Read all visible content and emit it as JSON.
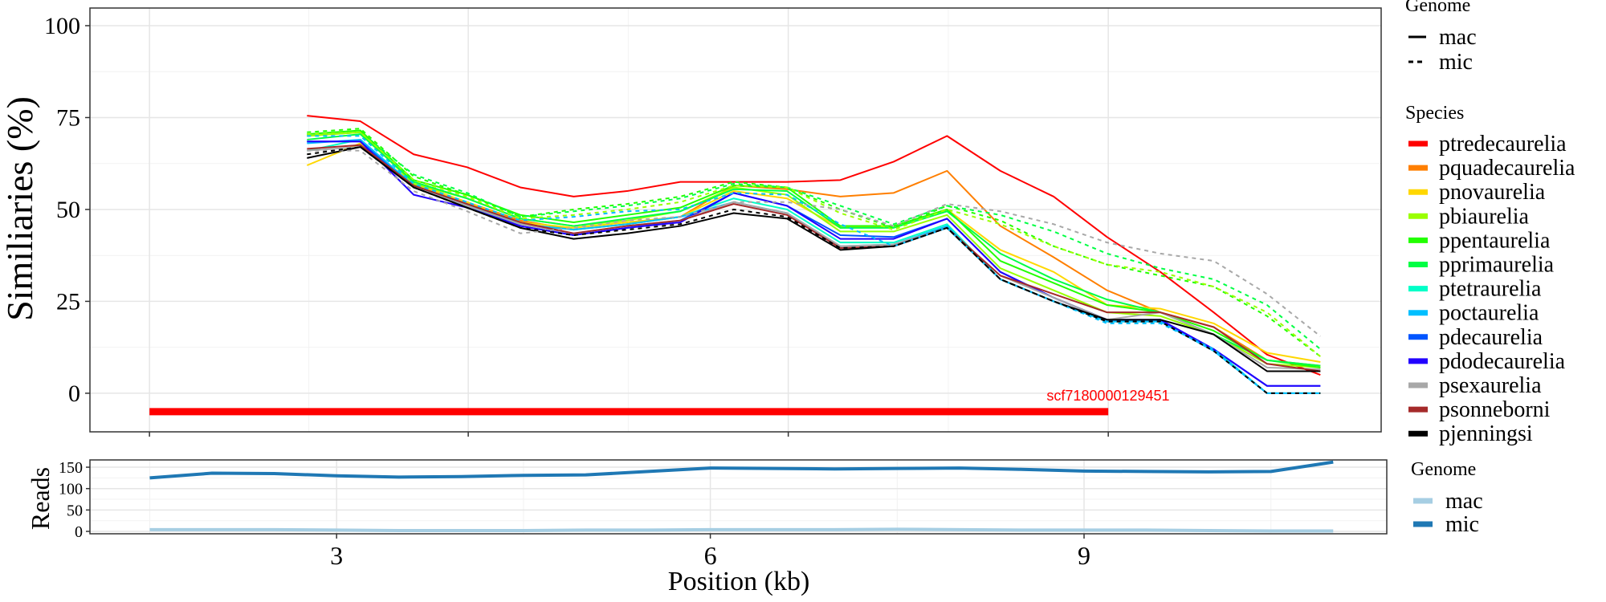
{
  "chart_data": [
    {
      "type": "line",
      "title": "",
      "xlabel": "",
      "ylabel": "Similiaries (%)",
      "xlim": [
        1.02,
        11.43
      ],
      "ylim": [
        -10.5,
        104.8
      ],
      "yticks": [
        0,
        25,
        50,
        75,
        100
      ],
      "xticks_unlabeled": [
        1.5,
        4.07,
        6.65,
        9.23
      ],
      "grid": true,
      "x": [
        2.77,
        3.2,
        3.63,
        4.06,
        4.49,
        4.92,
        5.35,
        5.78,
        6.21,
        6.64,
        7.07,
        7.5,
        7.93,
        8.36,
        8.79,
        9.22,
        9.65,
        10.08,
        10.51,
        10.94
      ],
      "annotation": {
        "label": "scf7180000129451",
        "color": "#ff0000",
        "bar_start": 1.5,
        "bar_end": 9.23,
        "bar_y": -5
      },
      "legend_genome": {
        "title": "Genome",
        "entries": [
          {
            "name": "mac",
            "dash": "solid"
          },
          {
            "name": "mic",
            "dash": "dashed"
          }
        ]
      },
      "legend_species": {
        "title": "Species",
        "placement": "right"
      },
      "series": [
        {
          "name": "ptredecaurelia",
          "color": "#ff0000",
          "genome": "mac",
          "values": [
            75.5,
            74,
            65,
            61.5,
            56,
            53.5,
            55,
            57.5,
            57.5,
            57.5,
            58,
            63,
            70,
            60.5,
            53.5,
            42.5,
            33,
            22,
            10.5,
            5
          ]
        },
        {
          "name": "pquadecaurelia",
          "color": "#ff7f00",
          "genome": "mac",
          "values": [
            70,
            71,
            57,
            52,
            47,
            44.5,
            46,
            48,
            56.5,
            55.5,
            53.5,
            54.5,
            60.5,
            45.5,
            37,
            28,
            22,
            18,
            9,
            7.5
          ]
        },
        {
          "name": "pnovaurelia",
          "color": "#ffd700",
          "genome": "mac",
          "values": [
            62,
            68,
            57,
            52,
            46.5,
            45,
            46.5,
            48,
            55,
            53,
            45,
            45.5,
            50,
            39,
            33,
            24,
            23,
            19,
            11,
            8.5
          ]
        },
        {
          "name": "pbiaurelia",
          "color": "#9aff00",
          "genome": "mac",
          "values": [
            70,
            71,
            57,
            53,
            47.5,
            45.5,
            47,
            49.5,
            56,
            54,
            44,
            44,
            48.5,
            34,
            28,
            22,
            21,
            16,
            8,
            7
          ]
        },
        {
          "name": "ppentaurelia",
          "color": "#22ff00",
          "genome": "mac",
          "values": [
            70.5,
            71.5,
            58,
            54,
            48.5,
            46.5,
            48.5,
            50.5,
            56.5,
            56,
            45.5,
            45.5,
            50,
            36,
            30,
            24,
            22,
            17,
            9,
            7
          ]
        },
        {
          "name": "pprimaurelia",
          "color": "#00ff44",
          "genome": "mac",
          "values": [
            69,
            70.5,
            57.5,
            53,
            47.5,
            45.5,
            47.5,
            49.5,
            55.5,
            55,
            45,
            45,
            49.5,
            38,
            31,
            25.5,
            22,
            16,
            9,
            7.5
          ]
        },
        {
          "name": "ptetraurelia",
          "color": "#00ffc8",
          "genome": "mac",
          "values": [
            66,
            69,
            56.5,
            51.5,
            46,
            44.5,
            46,
            48,
            53,
            50,
            41,
            41,
            46,
            31,
            25,
            19.5,
            19.5,
            12,
            0,
            0
          ]
        },
        {
          "name": "poctaurelia",
          "color": "#00bfff",
          "genome": "mac",
          "values": [
            68,
            69,
            56.5,
            51.5,
            46,
            44.5,
            46,
            48,
            52,
            49,
            40,
            40.5,
            45.5,
            31,
            25,
            19.5,
            19.5,
            11.5,
            0,
            0
          ]
        },
        {
          "name": "pdecaurelia",
          "color": "#0055ff",
          "genome": "mac",
          "values": [
            68.5,
            68.5,
            56,
            51,
            45.5,
            43,
            45,
            47,
            54.5,
            51,
            43,
            42.5,
            47.5,
            33,
            26,
            20,
            20,
            12,
            2,
            2
          ]
        },
        {
          "name": "pdodecaurelia",
          "color": "#2200ff",
          "genome": "mac",
          "values": [
            68.5,
            68.5,
            54,
            50.5,
            45.5,
            43,
            45,
            46.5,
            54.5,
            51,
            42,
            42,
            47.5,
            33,
            26,
            20,
            20,
            12,
            2,
            2
          ]
        },
        {
          "name": "psexaurelia",
          "color": "#a8a8a8",
          "genome": "mac",
          "values": [
            66,
            67,
            56,
            51,
            46,
            43.5,
            45.5,
            47,
            52,
            49,
            40,
            40.5,
            45,
            32,
            26,
            20,
            22,
            16,
            7,
            6.5
          ]
        },
        {
          "name": "psonneborni",
          "color": "#a52a2a",
          "genome": "mac",
          "values": [
            66.5,
            67.5,
            56.5,
            51.5,
            46.5,
            43.5,
            45.5,
            47,
            51.5,
            48.5,
            39.5,
            40,
            45,
            32,
            27,
            22,
            22,
            18,
            8,
            6
          ]
        },
        {
          "name": "pjenningsi",
          "color": "#000000",
          "genome": "mac",
          "values": [
            64,
            67,
            56,
            50.5,
            45,
            42,
            43.5,
            45.5,
            49,
            47.5,
            39,
            40,
            45,
            31,
            25,
            20,
            20,
            16,
            6,
            6
          ]
        },
        {
          "name": "ppentaurelia",
          "color": "#22ff00",
          "genome": "mic",
          "values": [
            71,
            72,
            59,
            54,
            48,
            50,
            51.5,
            53.5,
            57.5,
            56,
            50,
            45,
            51,
            47,
            40,
            35,
            32,
            29,
            21,
            10
          ]
        },
        {
          "name": "pprimaurelia",
          "color": "#00ff44",
          "genome": "mic",
          "values": [
            70.5,
            71,
            59.5,
            54.5,
            48,
            49.5,
            51,
            53,
            57,
            56,
            51,
            46,
            51,
            48.5,
            44,
            38,
            34,
            31,
            24,
            12
          ]
        },
        {
          "name": "pbiaurelia",
          "color": "#9aff00",
          "genome": "mic",
          "values": [
            70.5,
            71,
            58,
            53.5,
            47.5,
            48.5,
            50,
            52,
            56.5,
            56,
            49,
            44.5,
            50,
            46,
            40,
            35,
            33,
            29,
            22,
            10
          ]
        },
        {
          "name": "psexaurelia",
          "color": "#a8a8a8",
          "genome": "mic",
          "values": [
            66,
            66,
            55,
            49.5,
            43.5,
            45,
            47,
            48,
            52,
            52,
            50,
            45.5,
            51.5,
            49.5,
            46,
            41,
            38,
            36,
            27,
            15.5
          ]
        },
        {
          "name": "poctaurelia",
          "color": "#00bfff",
          "genome": "mic",
          "values": [
            70,
            70,
            57,
            52,
            47,
            48,
            49.5,
            50,
            54.5,
            54,
            46,
            40,
            45,
            31,
            25,
            19,
            19,
            12,
            0,
            0
          ]
        },
        {
          "name": "pjenningsi",
          "color": "#000000",
          "genome": "mic",
          "values": [
            65,
            67,
            56,
            50.5,
            45,
            43,
            44.5,
            46,
            50,
            48,
            39.5,
            40,
            45,
            31,
            25,
            19.5,
            19.5,
            11.5,
            0,
            0
          ]
        }
      ],
      "species_legend": [
        {
          "name": "ptredecaurelia",
          "color": "#ff0000"
        },
        {
          "name": "pquadecaurelia",
          "color": "#ff7f00"
        },
        {
          "name": "pnovaurelia",
          "color": "#ffd700"
        },
        {
          "name": "pbiaurelia",
          "color": "#9aff00"
        },
        {
          "name": "ppentaurelia",
          "color": "#22ff00"
        },
        {
          "name": "pprimaurelia",
          "color": "#00ff44"
        },
        {
          "name": "ptetraurelia",
          "color": "#00ffc8"
        },
        {
          "name": "poctaurelia",
          "color": "#00bfff"
        },
        {
          "name": "pdecaurelia",
          "color": "#0055ff"
        },
        {
          "name": "pdodecaurelia",
          "color": "#2200ff"
        },
        {
          "name": "psexaurelia",
          "color": "#a8a8a8"
        },
        {
          "name": "psonneborni",
          "color": "#a52a2a"
        },
        {
          "name": "pjenningsi",
          "color": "#000000"
        }
      ]
    },
    {
      "type": "line",
      "title": "",
      "xlabel": "Position (kb)",
      "ylabel": "Reads",
      "xlim": [
        1.02,
        11.43
      ],
      "ylim": [
        -5.6,
        167
      ],
      "xticks": [
        3,
        6,
        9
      ],
      "xtick_labels": [
        "3",
        "6",
        "9"
      ],
      "yticks": [
        0,
        50,
        100,
        150
      ],
      "ytick_labels": [
        "0",
        "50",
        "100",
        "150"
      ],
      "grid": true,
      "x": [
        1.5,
        2,
        2.5,
        3,
        3.5,
        4,
        4.5,
        5,
        5.5,
        6,
        6.5,
        7,
        7.5,
        8,
        8.5,
        9,
        9.5,
        10,
        10.5,
        11
      ],
      "legend": {
        "title": "Genome",
        "placement": "right"
      },
      "series": [
        {
          "name": "mac",
          "color": "#a6cee3",
          "values": [
            4,
            4,
            4,
            3,
            2,
            2,
            2,
            3,
            3,
            4,
            4,
            4,
            5,
            4,
            3,
            3,
            3,
            2,
            1,
            1
          ]
        },
        {
          "name": "mic",
          "color": "#1f78b4",
          "values": [
            125,
            136,
            135,
            130,
            127,
            128,
            131,
            132,
            140,
            148,
            147,
            146,
            147,
            148,
            145,
            141,
            140,
            139,
            140,
            162
          ]
        }
      ]
    }
  ],
  "top_yticks_labels": [
    "0",
    "25",
    "50",
    "75",
    "100"
  ]
}
